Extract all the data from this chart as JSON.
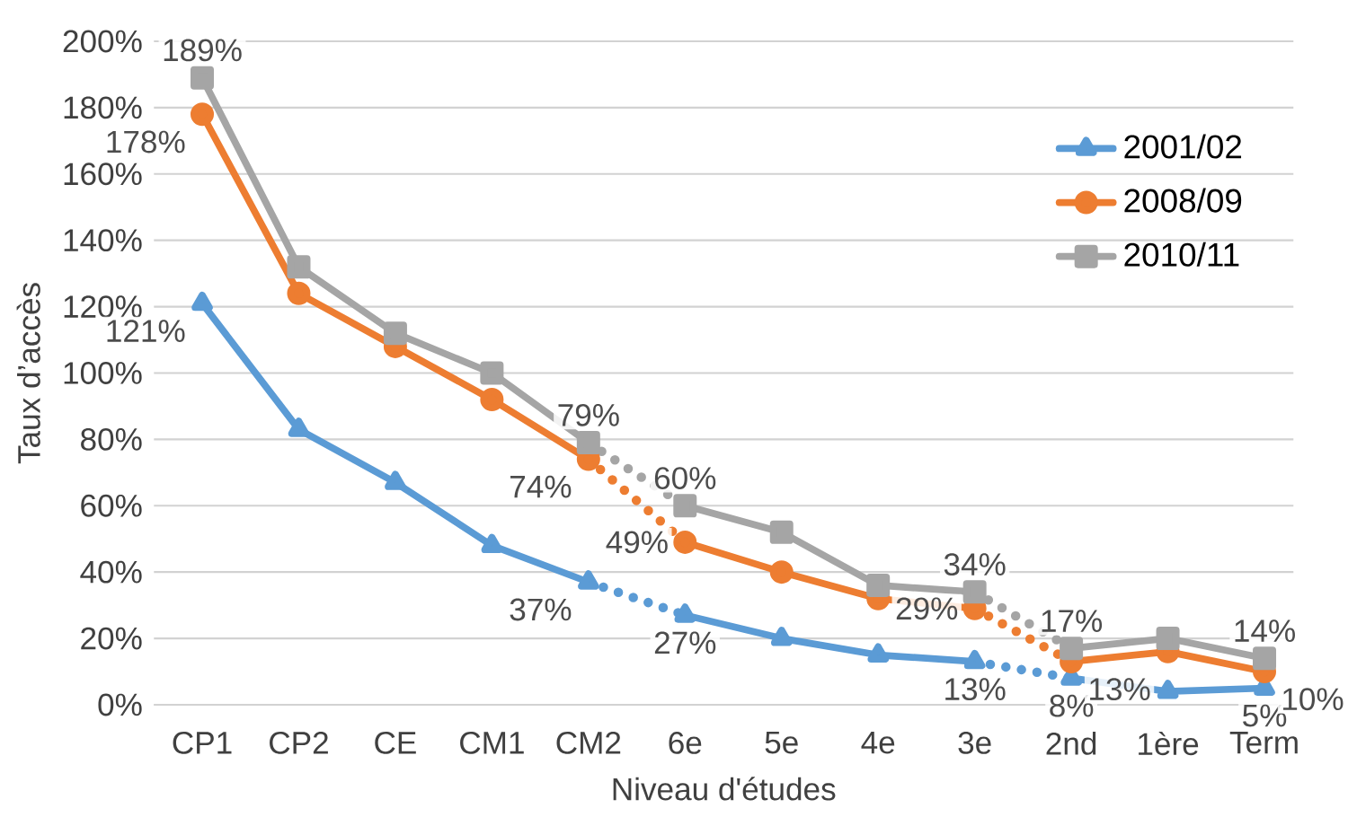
{
  "chart_data": {
    "type": "line",
    "xlabel": "Niveau d'études",
    "ylabel": "Taux d’accès",
    "categories": [
      "CP1",
      "CP2",
      "CE",
      "CM1",
      "CM2",
      "6e",
      "5e",
      "4e",
      "3e",
      "2nd",
      "1ère",
      "Term"
    ],
    "ylim": [
      0,
      200
    ],
    "yticks": [
      {
        "value": 0,
        "label": "0%"
      },
      {
        "value": 20,
        "label": "20%"
      },
      {
        "value": 40,
        "label": "40%"
      },
      {
        "value": 60,
        "label": "60%"
      },
      {
        "value": 80,
        "label": "80%"
      },
      {
        "value": 100,
        "label": "100%"
      },
      {
        "value": 120,
        "label": "120%"
      },
      {
        "value": 140,
        "label": "140%"
      },
      {
        "value": 160,
        "label": "160%"
      },
      {
        "value": 180,
        "label": "180%"
      },
      {
        "value": 200,
        "label": "200%"
      }
    ],
    "grid": "y",
    "legend": "top right",
    "series": [
      {
        "name": "2001/02",
        "color": "#5b9bd5",
        "marker": "triangle",
        "line_style": "solid",
        "values": [
          121,
          83,
          67,
          48,
          37,
          null,
          null,
          null,
          null,
          null,
          null,
          null
        ],
        "value_labels": [
          "121%",
          null,
          null,
          null,
          "37%",
          null,
          null,
          null,
          null,
          null,
          null,
          null
        ]
      },
      {
        "name": "2008/09",
        "color": "#ed7d31",
        "marker": "circle",
        "line_style": "solid",
        "values": [
          178,
          124,
          108,
          92,
          74,
          null,
          null,
          null,
          null,
          null,
          null,
          null
        ],
        "value_labels": [
          "178%",
          null,
          null,
          null,
          "74%",
          null,
          null,
          null,
          null,
          null,
          null,
          null
        ]
      },
      {
        "name": "2010/11",
        "color": "#a5a5a5",
        "marker": "square",
        "line_style": "solid",
        "values": [
          189,
          132,
          112,
          100,
          79,
          null,
          null,
          null,
          null,
          null,
          null,
          null
        ],
        "value_labels": [
          "189%",
          null,
          null,
          null,
          "79%",
          null,
          null,
          null,
          null,
          null,
          null,
          null
        ]
      },
      {
        "color": "#5b9bd5",
        "marker": "triangle",
        "line_style": "solid",
        "values": [
          null,
          null,
          null,
          null,
          null,
          27,
          20,
          15,
          13,
          null,
          null,
          null
        ],
        "value_labels": [
          null,
          null,
          null,
          null,
          null,
          "27%",
          null,
          null,
          "13%",
          null,
          null,
          null
        ]
      },
      {
        "color": "#ed7d31",
        "marker": "circle",
        "line_style": "solid",
        "values": [
          null,
          null,
          null,
          null,
          null,
          49,
          40,
          32,
          29,
          null,
          null,
          null
        ],
        "value_labels": [
          null,
          null,
          null,
          null,
          null,
          "49%",
          null,
          null,
          "29%",
          null,
          null,
          null
        ]
      },
      {
        "color": "#a5a5a5",
        "marker": "square",
        "line_style": "solid",
        "values": [
          null,
          null,
          null,
          null,
          null,
          60,
          52,
          36,
          34,
          null,
          null,
          null
        ],
        "value_labels": [
          null,
          null,
          null,
          null,
          null,
          "60%",
          null,
          null,
          "34%",
          null,
          null,
          null
        ]
      },
      {
        "color": "#5b9bd5",
        "marker": "triangle",
        "line_style": "solid",
        "values": [
          null,
          null,
          null,
          null,
          null,
          null,
          null,
          null,
          null,
          8,
          4,
          5
        ],
        "value_labels": [
          null,
          null,
          null,
          null,
          null,
          null,
          null,
          null,
          null,
          "8%",
          null,
          "5%"
        ]
      },
      {
        "color": "#ed7d31",
        "marker": "circle",
        "line_style": "solid",
        "values": [
          null,
          null,
          null,
          null,
          null,
          null,
          null,
          null,
          null,
          13,
          16,
          10
        ],
        "value_labels": [
          null,
          null,
          null,
          null,
          null,
          null,
          null,
          null,
          null,
          "13%",
          null,
          "10%"
        ]
      },
      {
        "color": "#a5a5a5",
        "marker": "square",
        "line_style": "solid",
        "values": [
          null,
          null,
          null,
          null,
          null,
          null,
          null,
          null,
          null,
          17,
          20,
          14
        ],
        "value_labels": [
          null,
          null,
          null,
          null,
          null,
          null,
          null,
          null,
          null,
          "17%",
          null,
          "14%"
        ]
      },
      {
        "color": "#5b9bd5",
        "marker": "none",
        "line_style": "dotted",
        "values": [
          null,
          null,
          null,
          null,
          37,
          27,
          null,
          null,
          13,
          8,
          null,
          null
        ]
      },
      {
        "color": "#ed7d31",
        "marker": "none",
        "line_style": "dotted",
        "values": [
          null,
          null,
          null,
          null,
          74,
          49,
          null,
          null,
          29,
          13,
          null,
          null
        ]
      },
      {
        "color": "#a5a5a5",
        "marker": "none",
        "line_style": "dotted",
        "values": [
          null,
          null,
          null,
          null,
          79,
          60,
          null,
          null,
          34,
          17,
          null,
          null
        ]
      }
    ]
  }
}
